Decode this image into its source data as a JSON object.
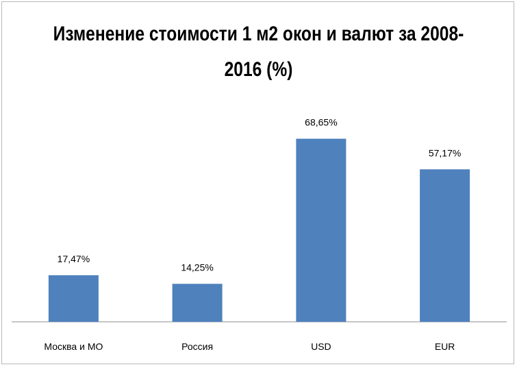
{
  "chart_data": {
    "type": "bar",
    "title_lines": [
      "Изменение стоимости 1 м2 окон и валют за 2008-",
      "2016 (%)"
    ],
    "categories": [
      "Москва и МО",
      "Россия",
      "USD",
      "EUR"
    ],
    "values": [
      17.47,
      14.25,
      68.65,
      57.17
    ],
    "data_labels": [
      "17,47%",
      "14,25%",
      "68,65%",
      "57,17%"
    ],
    "bar_color": "#4f81bd",
    "ylim": [
      0,
      100
    ],
    "grid": false,
    "legend": "none"
  }
}
